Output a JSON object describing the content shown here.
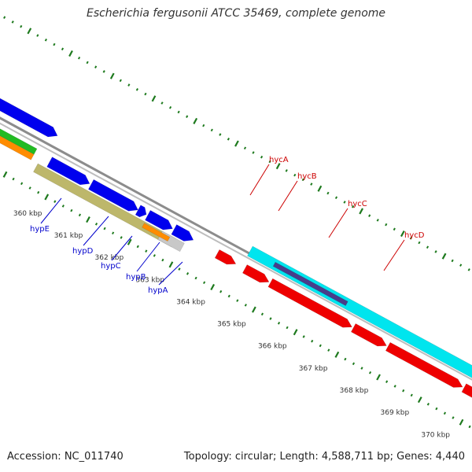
{
  "title": "Escherichia fergusonii ATCC 35469, complete genome",
  "footer": {
    "accession": "Accession: NC_011740",
    "summary": "Topology: circular; Length: 4,588,711 bp; Genes: 4,440"
  },
  "colors": {
    "backbone": "#8c8c8c",
    "tick": "#1e7a1e",
    "blue": "#0000ee",
    "red": "#ee0000",
    "cyan": "#00e5ee",
    "khaki": "#bdb76b",
    "orange": "#ff8c00",
    "green": "#22bb22",
    "purple": "#483d8b",
    "grey": "#c8c8c8",
    "label_left": "#0000cc",
    "label_right": "#cc0000"
  },
  "scale_labels": [
    "360 kbp",
    "361 kbp",
    "362 kbp",
    "363 kbp",
    "364 kbp",
    "365 kbp",
    "366 kbp",
    "367 kbp",
    "368 kbp",
    "369 kbp",
    "370 kbp"
  ],
  "genes_left": [
    "hypE",
    "hypD",
    "hypC",
    "hypB",
    "hypA"
  ],
  "genes_right": [
    "hycA",
    "hycB",
    "hycC",
    "hycD"
  ]
}
